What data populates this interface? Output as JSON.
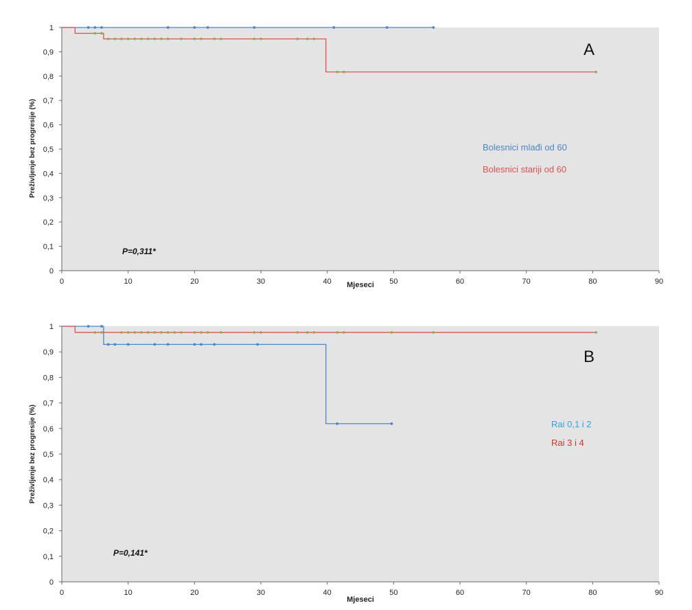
{
  "chart_data": [
    {
      "type": "line",
      "panel_letter": "A",
      "xlabel": "Mjeseci",
      "ylabel": "Preživljenje bez progresije (%)",
      "xlim": [
        0,
        90
      ],
      "ylim": [
        0,
        1
      ],
      "x_ticks": [
        "0",
        "10",
        "20",
        "30",
        "40",
        "50",
        "60",
        "70",
        "80",
        "90"
      ],
      "y_ticks": [
        "0",
        "0,1",
        "0,2",
        "0,3",
        "0,4",
        "0,5",
        "0,6",
        "0,7",
        "0,8",
        "0,9",
        "1"
      ],
      "grid": false,
      "annotation": "P=0,311*",
      "series": [
        {
          "name": "Bolesnici mlađi od 60",
          "color": "#4a86c8",
          "marker_color": "#4a86c8",
          "step_x": [
            0,
            56
          ],
          "step_y": [
            1,
            1
          ],
          "censored_x": [
            4,
            5,
            6,
            16,
            20,
            22,
            29,
            41,
            49,
            56
          ],
          "censored_y": [
            1,
            1,
            1,
            1,
            1,
            1,
            1,
            1,
            1,
            1
          ]
        },
        {
          "name": "Bolesnici stariji od 60",
          "color": "#d9534f",
          "marker_color": "#8fae5a",
          "step_x": [
            0,
            2,
            6.3,
            39.8,
            80.5
          ],
          "step_y": [
            1,
            0.976,
            0.953,
            0.817,
            0.817
          ],
          "censored_x": [
            5,
            6,
            7,
            8,
            9,
            10,
            11,
            12,
            13,
            14,
            15,
            16,
            18,
            20,
            21,
            23,
            24,
            29,
            30,
            35.5,
            37,
            38,
            41.5,
            42.5,
            80.5
          ],
          "censored_y": [
            0.976,
            0.976,
            0.953,
            0.953,
            0.953,
            0.953,
            0.953,
            0.953,
            0.953,
            0.953,
            0.953,
            0.953,
            0.953,
            0.953,
            0.953,
            0.953,
            0.953,
            0.953,
            0.953,
            0.953,
            0.953,
            0.953,
            0.817,
            0.817,
            0.817
          ]
        }
      ]
    },
    {
      "type": "line",
      "panel_letter": "B",
      "xlabel": "Mjeseci",
      "ylabel": "Preživljenje bez progresije (%)",
      "xlim": [
        0,
        90
      ],
      "ylim": [
        0,
        1
      ],
      "x_ticks": [
        "0",
        "10",
        "20",
        "30",
        "40",
        "50",
        "60",
        "70",
        "80",
        "90"
      ],
      "y_ticks": [
        "0",
        "0,1",
        "0,2",
        "0,3",
        "0,4",
        "0,5",
        "0,6",
        "0,7",
        "0,8",
        "0,9",
        "1"
      ],
      "grid": false,
      "annotation": "P=0,141*",
      "series": [
        {
          "name": "Rai 0,1 i 2",
          "color": "#4a86c8",
          "marker_color": "#4a86c8",
          "legend_color": "#29a7e0",
          "step_x": [
            0,
            6.3,
            39.8,
            49.7
          ],
          "step_y": [
            1,
            0.929,
            0.619,
            0.619
          ],
          "censored_x": [
            4,
            6,
            7,
            8,
            10,
            14,
            16,
            20,
            21,
            23,
            29.5,
            41.5,
            49.7
          ],
          "censored_y": [
            1,
            1,
            0.929,
            0.929,
            0.929,
            0.929,
            0.929,
            0.929,
            0.929,
            0.929,
            0.929,
            0.619,
            0.619
          ]
        },
        {
          "name": "Rai 3 i 4",
          "color": "#d9534f",
          "marker_color": "#8fae5a",
          "legend_color": "#d9302a",
          "step_x": [
            0,
            2,
            80.5
          ],
          "step_y": [
            1,
            0.976,
            0.976
          ],
          "censored_x": [
            5,
            6,
            9,
            10,
            11,
            12,
            13,
            14,
            15,
            16,
            17,
            18,
            20,
            21,
            22,
            24,
            29,
            30,
            35.5,
            37,
            38,
            41.5,
            42.5,
            49.7,
            56,
            80.5
          ],
          "censored_y": [
            0.976,
            0.976,
            0.976,
            0.976,
            0.976,
            0.976,
            0.976,
            0.976,
            0.976,
            0.976,
            0.976,
            0.976,
            0.976,
            0.976,
            0.976,
            0.976,
            0.976,
            0.976,
            0.976,
            0.976,
            0.976,
            0.976,
            0.976,
            0.976,
            0.976,
            0.976
          ]
        }
      ]
    }
  ]
}
